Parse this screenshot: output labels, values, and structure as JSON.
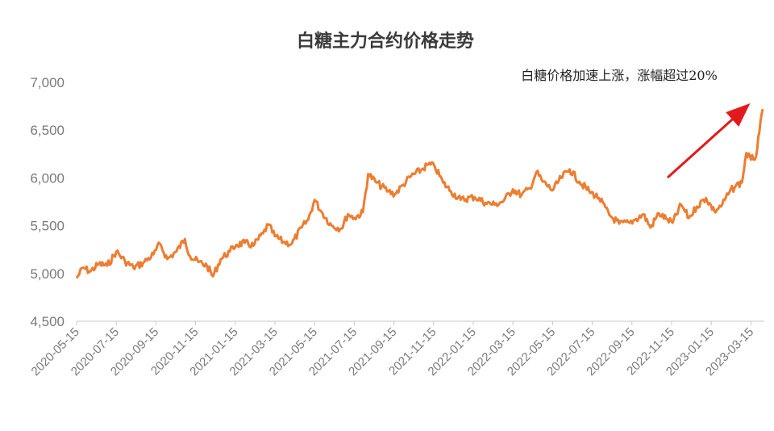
{
  "chart_data": {
    "type": "line",
    "title": "白糖主力合约价格走势",
    "annotation": "白糖价格加速上涨，涨幅超过20%",
    "xlabel": "",
    "ylabel": "",
    "ylim": [
      4500,
      7000
    ],
    "y_ticks": [
      "4,500",
      "5,000",
      "5,500",
      "6,000",
      "6,500",
      "7,000"
    ],
    "x_ticks": [
      "2020-05-15",
      "2020-07-15",
      "2020-09-15",
      "2020-11-15",
      "2021-01-15",
      "2021-03-15",
      "2021-05-15",
      "2021-07-15",
      "2021-09-15",
      "2021-11-15",
      "2022-01-15",
      "2022-03-15",
      "2022-05-15",
      "2022-07-15",
      "2022-09-15",
      "2022-11-15",
      "2023-01-15",
      "2023-03-15"
    ],
    "grid": false,
    "legend": "none",
    "series": [
      {
        "color": "#ed7d31",
        "points": [
          [
            "2020-05-15",
            4950
          ],
          [
            "2020-05-25",
            5060
          ],
          [
            "2020-06-05",
            5020
          ],
          [
            "2020-06-18",
            5100
          ],
          [
            "2020-07-01",
            5080
          ],
          [
            "2020-07-15",
            5230
          ],
          [
            "2020-07-28",
            5130
          ],
          [
            "2020-08-10",
            5060
          ],
          [
            "2020-08-25",
            5110
          ],
          [
            "2020-09-10",
            5200
          ],
          [
            "2020-09-20",
            5310
          ],
          [
            "2020-10-01",
            5150
          ],
          [
            "2020-10-15",
            5230
          ],
          [
            "2020-10-28",
            5360
          ],
          [
            "2020-11-05",
            5180
          ],
          [
            "2020-11-18",
            5120
          ],
          [
            "2020-12-01",
            5080
          ],
          [
            "2020-12-10",
            4970
          ],
          [
            "2020-12-22",
            5150
          ],
          [
            "2021-01-05",
            5230
          ],
          [
            "2021-01-15",
            5300
          ],
          [
            "2021-01-28",
            5320
          ],
          [
            "2021-02-10",
            5290
          ],
          [
            "2021-02-25",
            5420
          ],
          [
            "2021-03-05",
            5510
          ],
          [
            "2021-03-15",
            5390
          ],
          [
            "2021-03-28",
            5330
          ],
          [
            "2021-04-10",
            5310
          ],
          [
            "2021-04-25",
            5480
          ],
          [
            "2021-05-05",
            5560
          ],
          [
            "2021-05-15",
            5770
          ],
          [
            "2021-05-25",
            5650
          ],
          [
            "2021-06-10",
            5500
          ],
          [
            "2021-06-25",
            5470
          ],
          [
            "2021-07-05",
            5620
          ],
          [
            "2021-07-15",
            5580
          ],
          [
            "2021-07-28",
            5640
          ],
          [
            "2021-08-05",
            6040
          ],
          [
            "2021-08-18",
            5950
          ],
          [
            "2021-09-05",
            5860
          ],
          [
            "2021-09-15",
            5830
          ],
          [
            "2021-09-28",
            5930
          ],
          [
            "2021-10-10",
            6020
          ],
          [
            "2021-10-25",
            6080
          ],
          [
            "2021-11-05",
            6140
          ],
          [
            "2021-11-15",
            6120
          ],
          [
            "2021-11-28",
            5950
          ],
          [
            "2021-12-10",
            5860
          ],
          [
            "2021-12-25",
            5770
          ],
          [
            "2022-01-15",
            5800
          ],
          [
            "2022-02-01",
            5740
          ],
          [
            "2022-02-15",
            5720
          ],
          [
            "2022-03-01",
            5760
          ],
          [
            "2022-03-15",
            5880
          ],
          [
            "2022-03-28",
            5820
          ],
          [
            "2022-04-10",
            5890
          ],
          [
            "2022-04-20",
            6060
          ],
          [
            "2022-04-30",
            5960
          ],
          [
            "2022-05-15",
            5870
          ],
          [
            "2022-05-28",
            6000
          ],
          [
            "2022-06-10",
            6090
          ],
          [
            "2022-06-25",
            5960
          ],
          [
            "2022-07-10",
            5860
          ],
          [
            "2022-07-25",
            5790
          ],
          [
            "2022-08-10",
            5610
          ],
          [
            "2022-08-25",
            5520
          ],
          [
            "2022-09-10",
            5530
          ],
          [
            "2022-09-20",
            5570
          ],
          [
            "2022-10-01",
            5620
          ],
          [
            "2022-10-12",
            5480
          ],
          [
            "2022-10-25",
            5630
          ],
          [
            "2022-11-05",
            5570
          ],
          [
            "2022-11-15",
            5530
          ],
          [
            "2022-11-28",
            5720
          ],
          [
            "2022-12-10",
            5580
          ],
          [
            "2022-12-22",
            5700
          ],
          [
            "2023-01-05",
            5790
          ],
          [
            "2023-01-18",
            5650
          ],
          [
            "2023-01-30",
            5720
          ],
          [
            "2023-02-10",
            5850
          ],
          [
            "2023-02-20",
            5920
          ],
          [
            "2023-03-01",
            5950
          ],
          [
            "2023-03-08",
            6260
          ],
          [
            "2023-03-15",
            6190
          ],
          [
            "2023-03-23",
            6230
          ],
          [
            "2023-03-28",
            6480
          ],
          [
            "2023-04-02",
            6720
          ]
        ]
      }
    ]
  }
}
